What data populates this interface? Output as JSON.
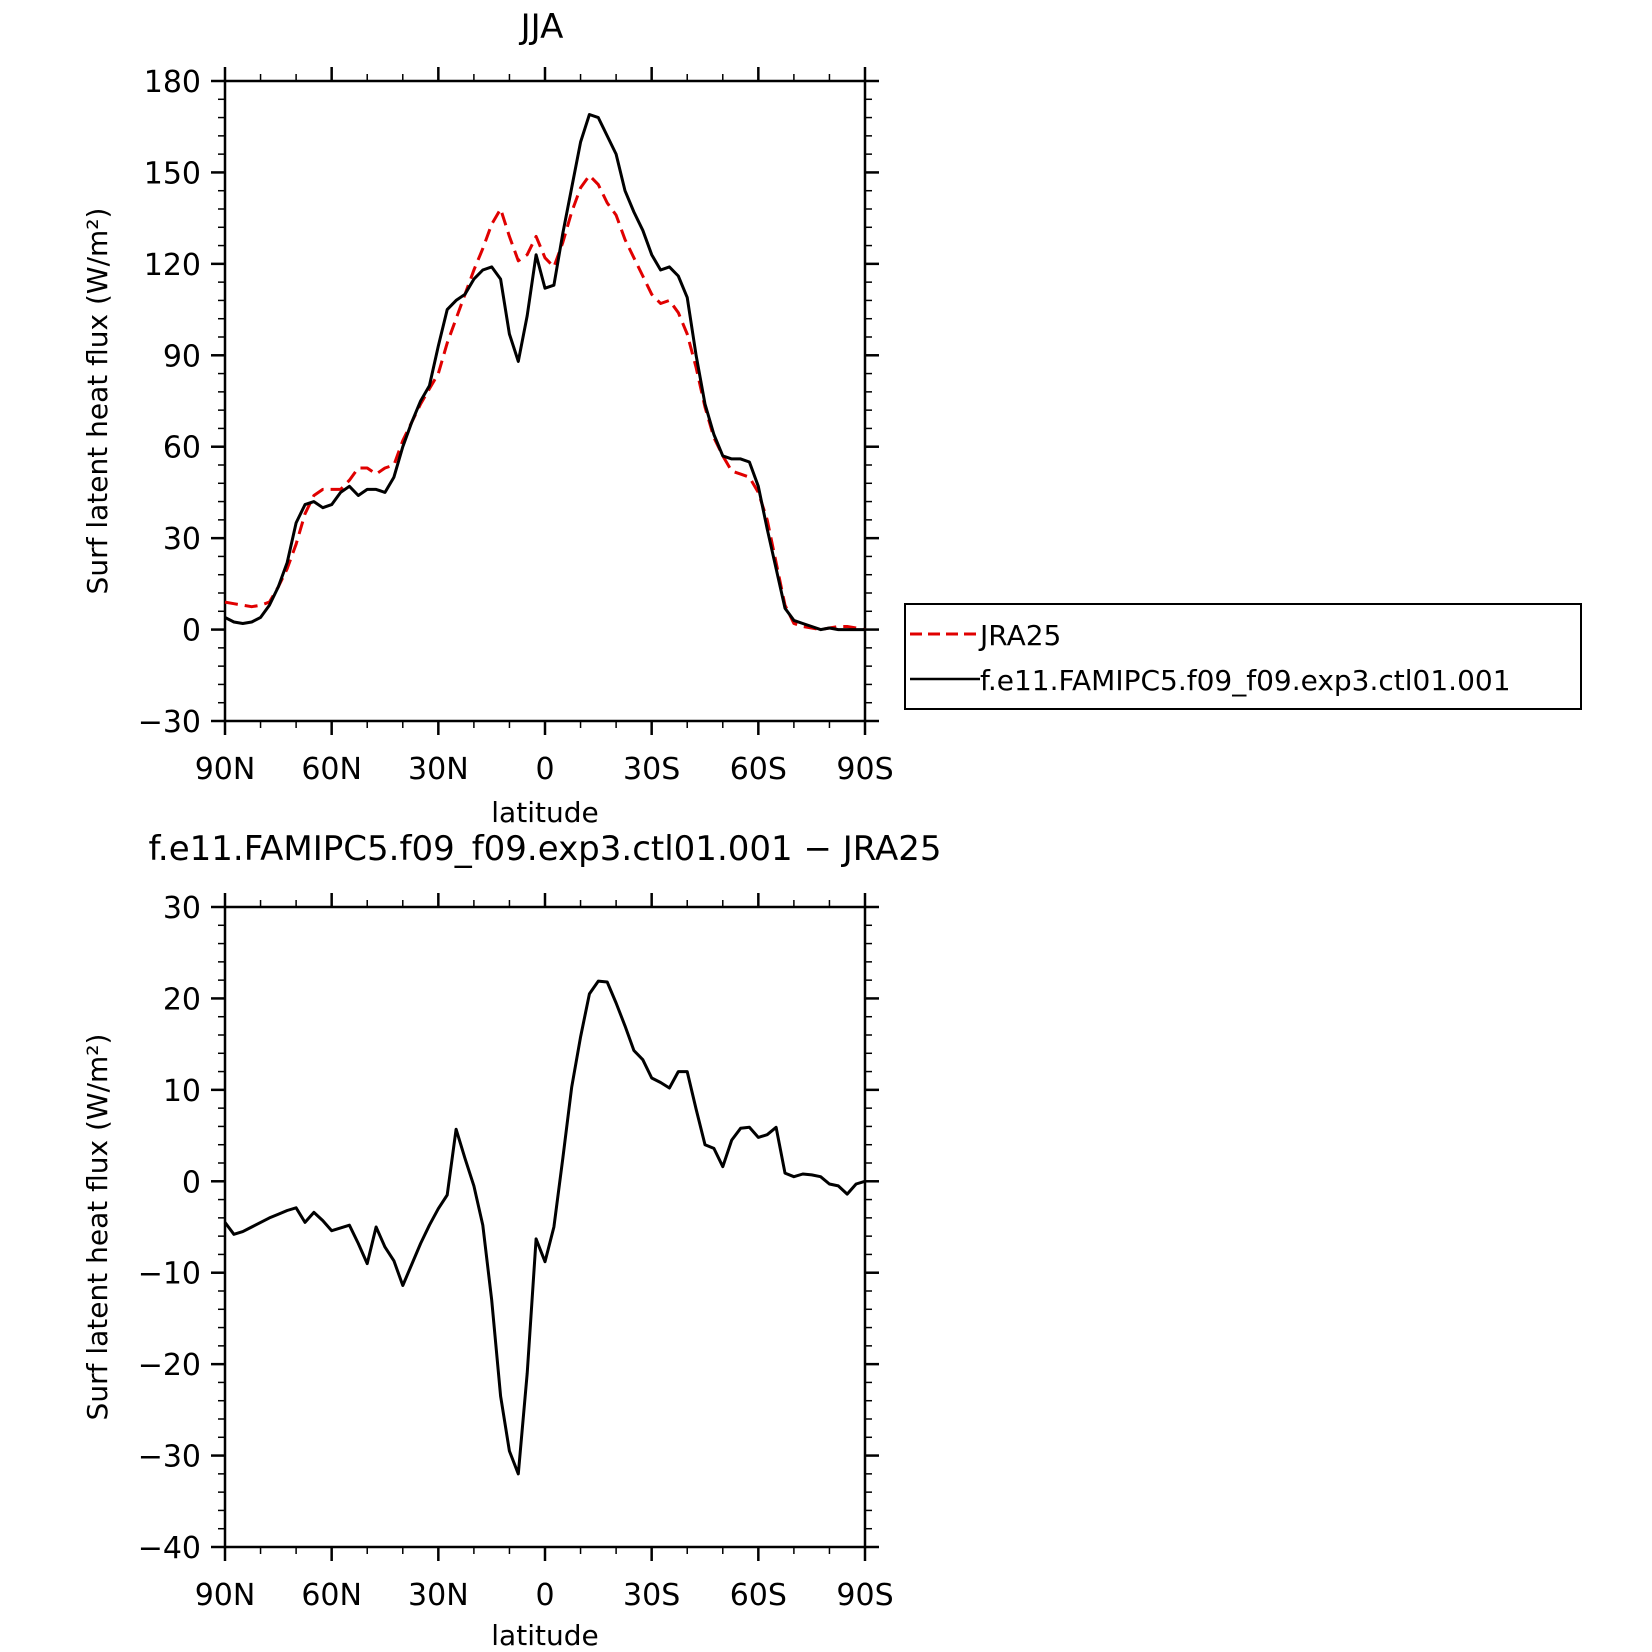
{
  "chart_data": [
    {
      "type": "line",
      "title": "JJA",
      "xlabel": "latitude",
      "ylabel": "Surf latent heat flux (W/m²)",
      "ylim": [
        -30,
        180
      ],
      "yticks": [
        -30,
        0,
        30,
        60,
        90,
        120,
        150,
        180
      ],
      "xlim": [
        -90,
        90
      ],
      "xticks": [
        {
          "value": -90,
          "label": "90N"
        },
        {
          "value": -60,
          "label": "60N"
        },
        {
          "value": -30,
          "label": "30N"
        },
        {
          "value": 0,
          "label": "0"
        },
        {
          "value": 30,
          "label": "30S"
        },
        {
          "value": 60,
          "label": "60S"
        },
        {
          "value": 90,
          "label": "90S"
        }
      ],
      "legend_position": "right",
      "series": [
        {
          "name": "JRA25",
          "color": "#e00000",
          "dash": "dashed",
          "x": [
            -90,
            -87.5,
            -85,
            -82.5,
            -80,
            -77.5,
            -75,
            -72.5,
            -70,
            -67.5,
            -65,
            -62.5,
            -60,
            -57.5,
            -55,
            -52.5,
            -50,
            -47.5,
            -45,
            -42.5,
            -40,
            -37.5,
            -35,
            -32.5,
            -30,
            -27.5,
            -25,
            -22.5,
            -20,
            -17.5,
            -15,
            -12.5,
            -10,
            -7.5,
            -5,
            -2.5,
            0,
            2.5,
            5,
            7.5,
            10,
            12.5,
            15,
            17.5,
            20,
            22.5,
            25,
            27.5,
            30,
            32.5,
            35,
            37.5,
            40,
            42.5,
            45,
            47.5,
            50,
            52.5,
            55,
            57.5,
            60,
            62.5,
            65,
            67.5,
            70,
            72.5,
            75,
            77.5,
            80,
            82.5,
            85,
            87.5,
            90
          ],
          "values": [
            9,
            8.5,
            8,
            7.5,
            8,
            9,
            14,
            20,
            28,
            38,
            44,
            46,
            46,
            46,
            49,
            53,
            53,
            51,
            53,
            54,
            62,
            68,
            74,
            79,
            84,
            94,
            102,
            110,
            118,
            125,
            133,
            138,
            129,
            121,
            123,
            129,
            122,
            119,
            127,
            137,
            145,
            149,
            146,
            140,
            136,
            128,
            122,
            116,
            110,
            107,
            108,
            104,
            97,
            86,
            73,
            63,
            57,
            52,
            51,
            50,
            45,
            36,
            22,
            8,
            2,
            1,
            0.5,
            0,
            0.5,
            1,
            1,
            0.5,
            0
          ]
        },
        {
          "name": "f.e11.FAMIPC5.f09_f09.exp3.ctl01.001",
          "color": "#000000",
          "dash": "solid",
          "x": [
            -90,
            -87.5,
            -85,
            -82.5,
            -80,
            -77.5,
            -75,
            -72.5,
            -70,
            -67.5,
            -65,
            -62.5,
            -60,
            -57.5,
            -55,
            -52.5,
            -50,
            -47.5,
            -45,
            -42.5,
            -40,
            -37.5,
            -35,
            -32.5,
            -30,
            -27.5,
            -25,
            -22.5,
            -20,
            -17.5,
            -15,
            -12.5,
            -10,
            -7.5,
            -5,
            -2.5,
            0,
            2.5,
            5,
            7.5,
            10,
            12.5,
            15,
            17.5,
            20,
            22.5,
            25,
            27.5,
            30,
            32.5,
            35,
            37.5,
            40,
            42.5,
            45,
            47.5,
            50,
            52.5,
            55,
            57.5,
            60,
            62.5,
            65,
            67.5,
            70,
            72.5,
            75,
            77.5,
            80,
            82.5,
            85,
            87.5,
            90
          ],
          "values": [
            4,
            2.5,
            2,
            2.5,
            4,
            8,
            14,
            22,
            35,
            41,
            42,
            40,
            41,
            45,
            47,
            44,
            46,
            46,
            45,
            50,
            60,
            68,
            75,
            80,
            93,
            105,
            108,
            110,
            115,
            118,
            119,
            115,
            97,
            88,
            103,
            123,
            112,
            113,
            130,
            145,
            160,
            169,
            168,
            162,
            156,
            144,
            137,
            131,
            123,
            118,
            119,
            116,
            109,
            90,
            74,
            64,
            57,
            56,
            56,
            55,
            47,
            33,
            20,
            7,
            3,
            2,
            1,
            0,
            0.5,
            0,
            0,
            0,
            0
          ]
        }
      ]
    },
    {
      "type": "line",
      "title": "f.e11.FAMIPC5.f09_f09.exp3.ctl01.001 − JRA25",
      "xlabel": "latitude",
      "ylabel": "Surf latent heat flux (W/m²)",
      "ylim": [
        -40,
        30
      ],
      "yticks": [
        -40,
        -30,
        -20,
        -10,
        0,
        10,
        20,
        30
      ],
      "xlim": [
        -90,
        90
      ],
      "xticks": [
        {
          "value": -90,
          "label": "90N"
        },
        {
          "value": -60,
          "label": "60N"
        },
        {
          "value": -30,
          "label": "30N"
        },
        {
          "value": 0,
          "label": "0"
        },
        {
          "value": 30,
          "label": "30S"
        },
        {
          "value": 60,
          "label": "60S"
        },
        {
          "value": 90,
          "label": "90S"
        }
      ],
      "series": [
        {
          "color": "#000000",
          "dash": "solid",
          "x": [
            -90,
            -87.5,
            -85,
            -82.5,
            -80,
            -77.5,
            -75,
            -72.5,
            -70,
            -67.5,
            -65,
            -62.5,
            -60,
            -57.5,
            -55,
            -52.5,
            -50,
            -47.5,
            -45,
            -42.5,
            -40,
            -37.5,
            -35,
            -32.5,
            -30,
            -27.5,
            -25,
            -22.5,
            -20,
            -17.5,
            -15,
            -12.5,
            -10,
            -7.5,
            -5,
            -2.5,
            0,
            2.5,
            5,
            7.5,
            10,
            12.5,
            15,
            17.5,
            20,
            22.5,
            25,
            27.5,
            30,
            32.5,
            35,
            37.5,
            40,
            42.5,
            45,
            47.5,
            50,
            52.5,
            55,
            57.5,
            60,
            62.5,
            65,
            67.5,
            70,
            72.5,
            75,
            77.5,
            80,
            82.5,
            85,
            87.5,
            90
          ],
          "values": [
            -4.5,
            -5.8,
            -5.5,
            -5,
            -4.5,
            -4,
            -3.6,
            -3.2,
            -2.9,
            -4.5,
            -3.4,
            -4.3,
            -5.4,
            -5.1,
            -4.8,
            -6.8,
            -9,
            -5,
            -7.2,
            -8.7,
            -11.4,
            -9.1,
            -6.8,
            -4.8,
            -3,
            -1.5,
            5.7,
            2.5,
            -0.5,
            -4.8,
            -13,
            -23.5,
            -29.5,
            -32,
            -21,
            -6.3,
            -8.8,
            -5,
            2.5,
            10.3,
            15.8,
            20.5,
            21.9,
            21.8,
            19.5,
            17,
            14.3,
            13.3,
            11.3,
            10.8,
            10.2,
            12,
            12,
            7.9,
            4,
            3.6,
            1.6,
            4.5,
            5.8,
            5.9,
            4.8,
            5.1,
            5.9,
            0.9,
            0.5,
            0.8,
            0.7,
            0.5,
            -0.3,
            -0.5,
            -1.4,
            -0.3,
            0
          ]
        }
      ]
    }
  ]
}
